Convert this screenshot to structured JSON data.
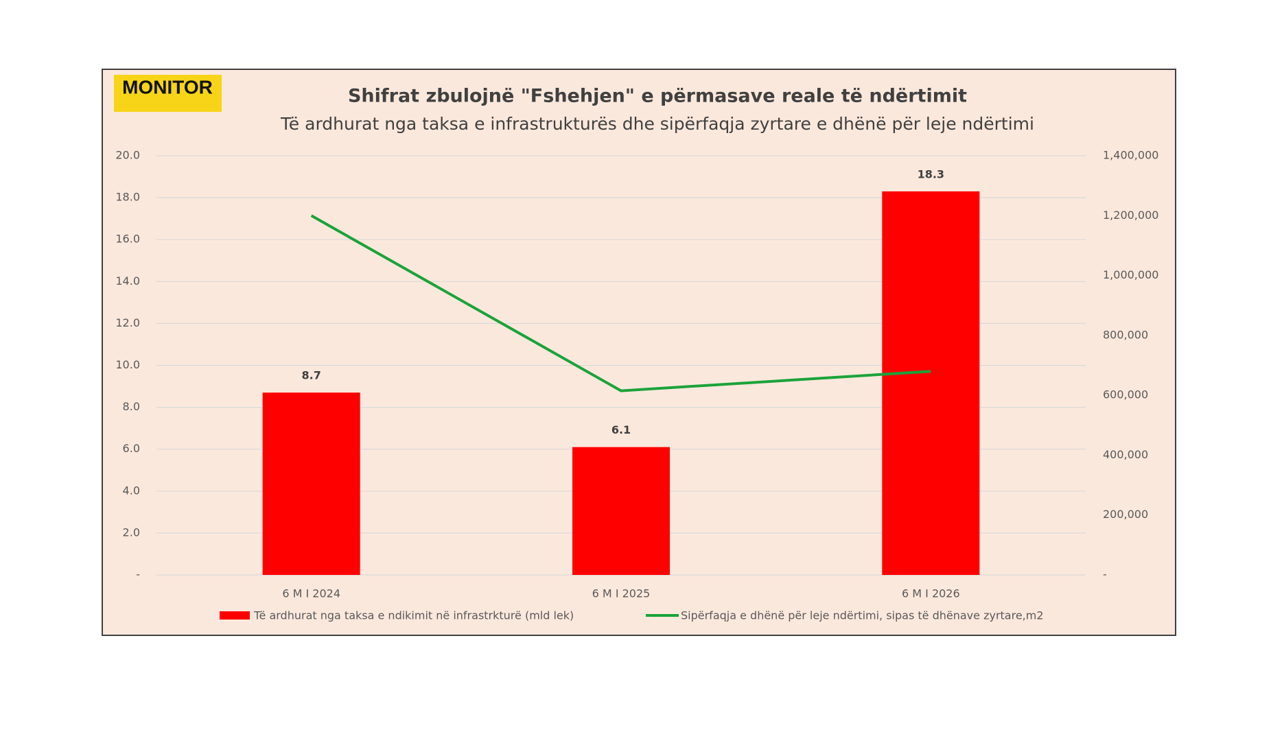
{
  "logo": "MONITOR",
  "chart_data": {
    "type": "bar-line",
    "title": "Shifrat zbulojnë \"Fshehjen\" e përmasave reale të ndërtimit",
    "subtitle": "Të ardhurat nga taksa e infrastrukturës dhe sipërfaqja zyrtare e dhënë për leje ndërtimi",
    "categories": [
      "6 M I 2024",
      "6 M I 2025",
      "6 M I 2026"
    ],
    "series": [
      {
        "name": "Të ardhurat nga taksa e ndikimit në infrastrkturë (mld lek)",
        "type": "bar",
        "color": "#ff0000",
        "values": [
          8.7,
          6.1,
          18.3
        ]
      },
      {
        "name": "Sipërfaqja e dhënë për leje ndërtimi, sipas të dhënave zyrtare,m2",
        "type": "line",
        "axis": "y2",
        "color": "#1aa33a",
        "values": [
          1200000,
          615000,
          680000
        ]
      }
    ],
    "ylim": [
      0,
      20
    ],
    "yticks": [
      {
        "value": 0,
        "label": "-"
      },
      {
        "value": 2,
        "label": "2.0"
      },
      {
        "value": 4,
        "label": "4.0"
      },
      {
        "value": 6,
        "label": "6.0"
      },
      {
        "value": 8,
        "label": "8.0"
      },
      {
        "value": 10,
        "label": "10.0"
      },
      {
        "value": 12,
        "label": "12.0"
      },
      {
        "value": 14,
        "label": "14.0"
      },
      {
        "value": 16,
        "label": "16.0"
      },
      {
        "value": 18,
        "label": "18.0"
      },
      {
        "value": 20,
        "label": "20.0"
      }
    ],
    "y2lim": [
      0,
      1400000
    ],
    "y2ticks": [
      {
        "value": 0,
        "label": "-"
      },
      {
        "value": 200000,
        "label": "200,000"
      },
      {
        "value": 400000,
        "label": "400,000"
      },
      {
        "value": 600000,
        "label": "600,000"
      },
      {
        "value": 800000,
        "label": "800,000"
      },
      {
        "value": 1000000,
        "label": "1,000,000"
      },
      {
        "value": 1200000,
        "label": "1,200,000"
      },
      {
        "value": 1400000,
        "label": "1,400,000"
      }
    ],
    "grid": true
  }
}
